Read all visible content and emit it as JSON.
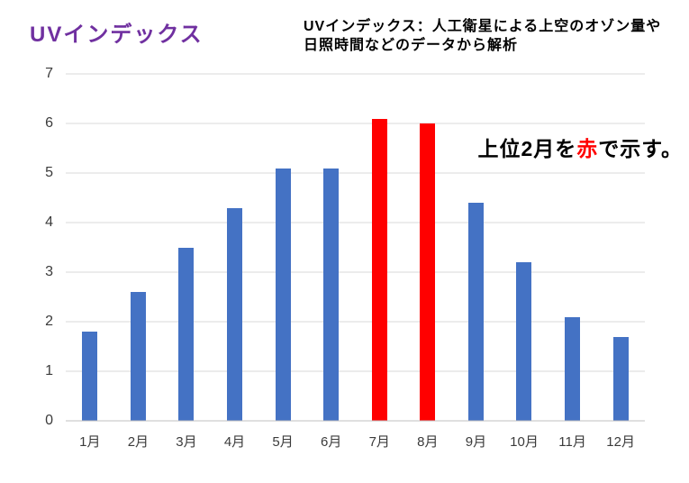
{
  "page": {
    "background": "#ffffff"
  },
  "header": {
    "title": "UVインデックス",
    "title_color": "#7030A0",
    "subtitle_line1": "UVインデックス：人工衛星による上空のオゾン量や",
    "subtitle_line2": "日照時間などのデータから解析"
  },
  "annotation": {
    "prefix": "上位2月を",
    "highlight": "赤",
    "suffix": "で示す。",
    "highlight_color": "#FF0000"
  },
  "chart_data": {
    "type": "bar",
    "title": "UVインデックス",
    "categories": [
      "1月",
      "2月",
      "3月",
      "4月",
      "5月",
      "6月",
      "7月",
      "8月",
      "9月",
      "10月",
      "11月",
      "12月"
    ],
    "values": [
      1.8,
      2.6,
      3.5,
      4.3,
      5.1,
      5.1,
      6.1,
      6.0,
      4.4,
      3.2,
      2.1,
      1.7
    ],
    "highlighted_categories": [
      "7月",
      "8月"
    ],
    "bar_color": "#4472C4",
    "highlight_color": "#FF0000",
    "xlabel": "",
    "ylabel": "",
    "ylim": [
      0,
      7
    ],
    "yticks": [
      0,
      1,
      2,
      3,
      4,
      5,
      6,
      7
    ],
    "grid": "horizontal-only",
    "gridline_color": "#d9d9d9",
    "axis_line_color": "#bfbfbf",
    "legend": "none"
  }
}
